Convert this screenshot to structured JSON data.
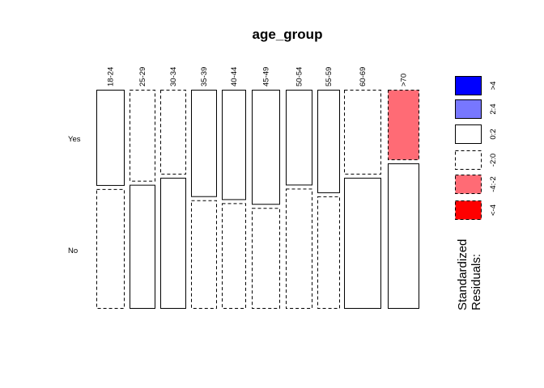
{
  "chart_data": {
    "type": "mosaic",
    "title": "age_group",
    "variable": "age_group",
    "columns": [
      {
        "label": "18-24",
        "yes": 0.445,
        "yes_residual": "0:2",
        "no_residual": "-2:0"
      },
      {
        "label": "25-29",
        "yes": 0.425,
        "yes_residual": "-2:0",
        "no_residual": "0:2"
      },
      {
        "label": "30-34",
        "yes": 0.392,
        "yes_residual": "-2:0",
        "no_residual": "0:2"
      },
      {
        "label": "35-39",
        "yes": 0.497,
        "yes_residual": "0:2",
        "no_residual": "-2:0"
      },
      {
        "label": "40-44",
        "yes": 0.511,
        "yes_residual": "0:2",
        "no_residual": "-2:0"
      },
      {
        "label": "45-49",
        "yes": 0.533,
        "yes_residual": "0:2",
        "no_residual": "-2:0"
      },
      {
        "label": "50-54",
        "yes": 0.443,
        "yes_residual": "0:2",
        "no_residual": "-2:0"
      },
      {
        "label": "55-59",
        "yes": 0.479,
        "yes_residual": "0:2",
        "no_residual": "-2:0"
      },
      {
        "label": "60-69",
        "yes": 0.392,
        "yes_residual": "-2:0",
        "no_residual": "0:2"
      },
      {
        "label": ">70",
        "yes": 0.325,
        "yes_residual": "-4:-2",
        "no_residual": "0:2"
      }
    ],
    "rows": [
      "Yes",
      "No"
    ],
    "legend": {
      "title_line1": "Standardized",
      "title_line2": "Residuals:",
      "placement": "right",
      "entries": [
        {
          "label": ">4",
          "fill": "#0000ff",
          "dashed": false
        },
        {
          "label": "2:4",
          "fill": "#7777ff",
          "dashed": false
        },
        {
          "label": "0:2",
          "fill": "#ffffff",
          "dashed": false
        },
        {
          "label": "-2:0",
          "fill": "#ffffff",
          "dashed": true
        },
        {
          "label": "-4:-2",
          "fill": "#ff6b75",
          "dashed": true
        },
        {
          "label": "<-4",
          "fill": "#ff0000",
          "dashed": true
        }
      ]
    },
    "residual_fills": {
      ">4": "#0000ff",
      "2:4": "#7777ff",
      "0:2": "#ffffff",
      "-2:0": "#ffffff",
      "-4:-2": "#ff6b75",
      "<-4": "#ff0000"
    }
  }
}
